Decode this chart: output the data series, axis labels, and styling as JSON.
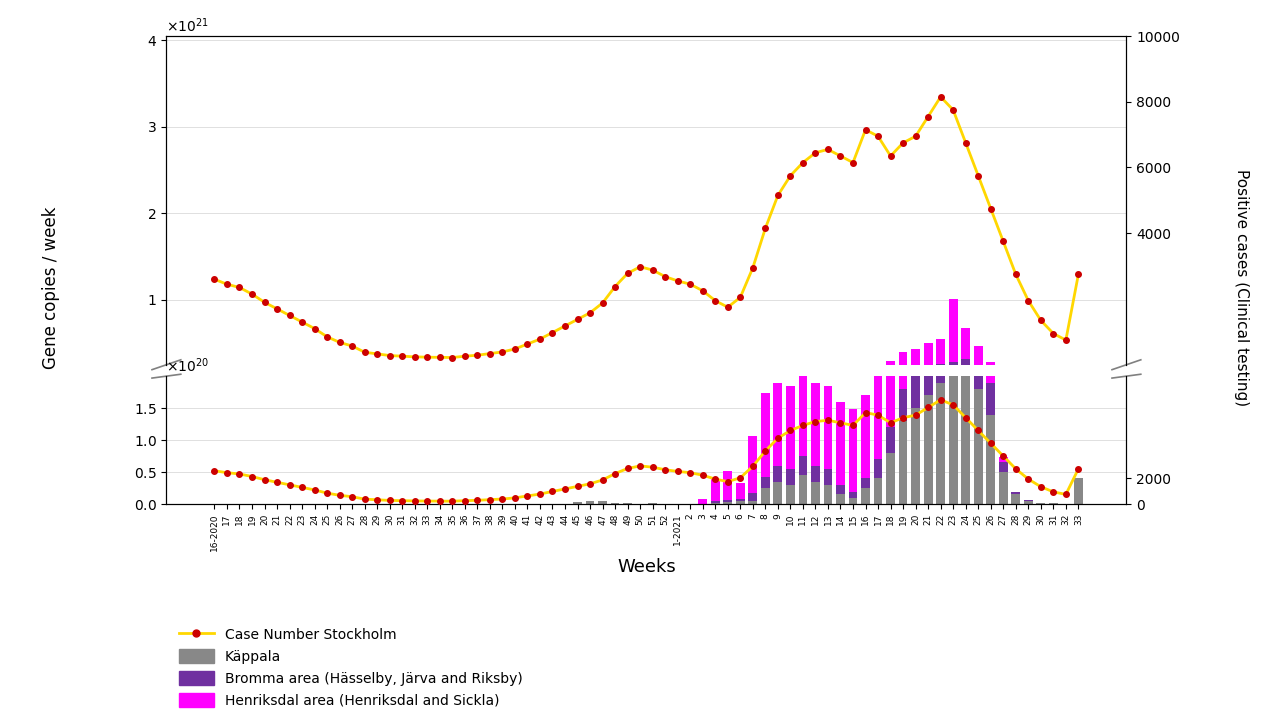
{
  "weeks": [
    "16-2020",
    "17",
    "18",
    "19",
    "20",
    "21",
    "22",
    "23",
    "24",
    "25",
    "26",
    "27",
    "28",
    "29",
    "30",
    "31",
    "32",
    "33",
    "34",
    "35",
    "36",
    "37",
    "38",
    "39",
    "40",
    "41",
    "42",
    "43",
    "44",
    "45",
    "46",
    "47",
    "48",
    "49",
    "50",
    "51",
    "52",
    "1-2021",
    "2",
    "3",
    "4",
    "5",
    "6",
    "7",
    "8",
    "9",
    "10",
    "11",
    "12",
    "13",
    "14",
    "15",
    "16",
    "17",
    "18",
    "19",
    "20",
    "21",
    "22",
    "23",
    "24",
    "25",
    "26",
    "27",
    "28",
    "29",
    "30",
    "31",
    "32",
    "33"
  ],
  "case_stockholm": [
    2600,
    2450,
    2350,
    2150,
    1900,
    1700,
    1500,
    1300,
    1100,
    850,
    680,
    570,
    380,
    330,
    280,
    260,
    240,
    230,
    225,
    220,
    260,
    290,
    340,
    390,
    480,
    630,
    780,
    980,
    1180,
    1380,
    1580,
    1880,
    2380,
    2780,
    2980,
    2880,
    2680,
    2550,
    2450,
    2250,
    1950,
    1750,
    2050,
    2950,
    4150,
    5150,
    5750,
    6150,
    6450,
    6550,
    6350,
    6150,
    7150,
    6950,
    6350,
    6750,
    6950,
    7550,
    8150,
    7750,
    6750,
    5750,
    4750,
    3750,
    2750,
    1950,
    1350,
    950,
    750,
    2750
  ],
  "kappala": [
    0,
    0,
    0,
    0,
    0,
    0,
    0,
    0,
    0,
    0,
    0,
    0,
    0,
    0,
    0,
    0,
    0,
    0,
    0,
    0,
    0,
    0,
    0,
    0,
    0,
    0,
    0,
    0,
    0,
    3e+18,
    5e+18,
    4e+18,
    2e+18,
    1e+18,
    5e+17,
    1e+18,
    0,
    0,
    0,
    0,
    2e+18,
    3e+18,
    4e+18,
    5e+18,
    2.5e+19,
    3.5e+19,
    3e+19,
    4.5e+19,
    3.5e+19,
    3e+19,
    1.5e+19,
    1e+19,
    2.5e+19,
    4e+19,
    8e+19,
    1.3e+20,
    1.5e+20,
    1.7e+20,
    1.9e+20,
    2.1e+20,
    2.3e+20,
    1.8e+20,
    1.4e+20,
    5e+19,
    1.5e+19,
    4e+18,
    1.5e+18,
    8e+17,
    0,
    4e+19
  ],
  "bromma": [
    0,
    0,
    0,
    0,
    0,
    0,
    0,
    0,
    0,
    0,
    0,
    0,
    0,
    0,
    0,
    0,
    0,
    0,
    0,
    0,
    0,
    0,
    0,
    0,
    0,
    0,
    0,
    0,
    0,
    0,
    0,
    0,
    0,
    0,
    0,
    0,
    0,
    0,
    0,
    0,
    2e+18,
    4e+18,
    4e+18,
    1.2e+19,
    1.8e+19,
    2.5e+19,
    2.5e+19,
    3e+19,
    2.5e+19,
    2.5e+19,
    1.5e+19,
    8e+18,
    1.5e+19,
    3e+19,
    4e+19,
    5e+19,
    6e+19,
    6.5e+19,
    7e+19,
    7.5e+19,
    9e+19,
    7e+19,
    5e+19,
    1.5e+19,
    4e+18,
    1.5e+18,
    0,
    0,
    0,
    0
  ],
  "henriksdal": [
    0,
    0,
    0,
    0,
    0,
    0,
    0,
    0,
    0,
    0,
    0,
    0,
    0,
    0,
    0,
    0,
    0,
    0,
    0,
    0,
    0,
    0,
    0,
    0,
    0,
    0,
    0,
    0,
    0,
    0,
    0,
    0,
    0,
    0,
    0,
    0,
    0,
    0,
    0,
    8e+18,
    3.5e+19,
    4.5e+19,
    2.5e+19,
    9e+19,
    1.3e+20,
    1.3e+20,
    1.3e+20,
    1.3e+20,
    1.3e+20,
    1.3e+20,
    1.3e+20,
    1.3e+20,
    1.3e+20,
    1.3e+20,
    1.7e+20,
    2.2e+20,
    2.2e+20,
    2.7e+20,
    2.9e+20,
    7.2e+20,
    3.6e+20,
    2.2e+20,
    9e+19,
    8e+18,
    0,
    0,
    0,
    0,
    0,
    0
  ],
  "ylabel_left": "Gene copies / week",
  "ylabel_right": "Positive cases (Clinical testing)",
  "xlabel": "Weeks",
  "ylim_upper": [
    2.5e+20,
    4.05e+21
  ],
  "ylim_lower": [
    0,
    2e+20
  ],
  "ylim_right": [
    0,
    10000
  ],
  "yticks_upper": [
    1e+21,
    2e+21,
    3e+21,
    4e+21
  ],
  "yticks_lower": [
    0,
    5e+19,
    1e+20,
    1.5e+20
  ],
  "yticks_right_upper": [
    4000,
    6000,
    8000,
    10000
  ],
  "yticks_right_lower": [
    0,
    2000
  ],
  "bar_color_kappala": "#888888",
  "bar_color_bromma": "#7030A0",
  "bar_color_henriksdal": "#FF00FF",
  "line_color": "#FFD700",
  "dot_color": "#CC0000",
  "legend_line": "Case Number Stockholm",
  "legend_kappala": "Käppala",
  "legend_bromma": "Bromma area (Hässelby, Järva and Riksby)",
  "legend_henriksdal": "Henriksdal area (Henriksdal and Sickla)"
}
